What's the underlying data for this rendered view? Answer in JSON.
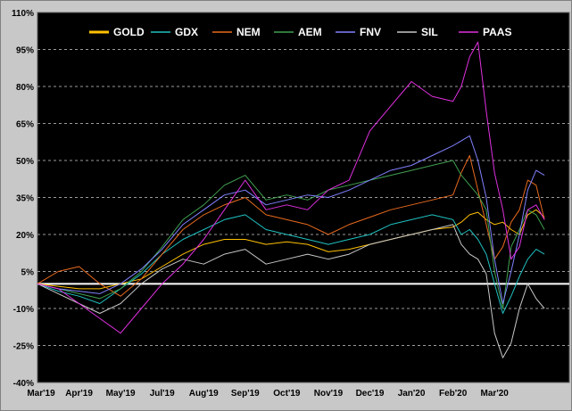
{
  "chart_data": {
    "type": "line",
    "title": "",
    "xlabel": "",
    "ylabel": "",
    "background": "#000000",
    "grid": true,
    "legend_placement": "top",
    "ylim": [
      -40,
      110
    ],
    "yticks": [
      -40,
      -25,
      -10,
      5,
      20,
      35,
      50,
      65,
      80,
      95,
      110
    ],
    "ytick_labels": [
      "-40%",
      "-25%",
      "-10%",
      "5%",
      "20%",
      "35%",
      "50%",
      "65%",
      "80%",
      "95%",
      "110%"
    ],
    "xlim": [
      0,
      12.8
    ],
    "x_tick_labels": [
      {
        "label": "Mar'19",
        "x": 0
      },
      {
        "label": "Apr'19",
        "x": 1
      },
      {
        "label": "May'19",
        "x": 2
      },
      {
        "label": "Jul'19",
        "x": 3
      },
      {
        "label": "Aug'19",
        "x": 4
      },
      {
        "label": "Sep'19",
        "x": 5
      },
      {
        "label": "Oct'19",
        "x": 6
      },
      {
        "label": "Nov'19",
        "x": 7
      },
      {
        "label": "Dec'19",
        "x": 8
      },
      {
        "label": "Jan'20",
        "x": 9
      },
      {
        "label": "Feb'20",
        "x": 10
      },
      {
        "label": "Mar'20",
        "x": 11
      }
    ],
    "reference_line": {
      "y": 0,
      "color": "#ffffff"
    },
    "x": [
      0,
      0.5,
      1,
      1.5,
      2,
      2.5,
      3,
      3.5,
      4,
      4.5,
      5,
      5.5,
      6,
      6.5,
      7,
      7.5,
      8,
      8.5,
      9,
      9.5,
      10,
      10.2,
      10.4,
      10.6,
      10.8,
      11,
      11.2,
      11.4,
      11.6,
      11.8,
      12,
      12.2
    ],
    "series": [
      {
        "name": "GOLD",
        "color": "#ffc000",
        "width": 2,
        "values": [
          0,
          -1,
          -2,
          -2,
          0,
          2,
          7,
          12,
          16,
          18,
          18,
          16,
          17,
          16,
          13,
          14,
          16,
          18,
          20,
          22,
          23,
          25,
          28,
          29,
          26,
          24,
          25,
          22,
          20,
          28,
          30,
          27
        ]
      },
      {
        "name": "GDX",
        "color": "#20c0c0",
        "width": 1,
        "values": [
          0,
          -3,
          -5,
          -8,
          -2,
          4,
          12,
          18,
          22,
          26,
          28,
          22,
          20,
          18,
          16,
          18,
          20,
          24,
          26,
          28,
          26,
          20,
          22,
          18,
          12,
          0,
          -12,
          -5,
          3,
          10,
          14,
          12
        ]
      },
      {
        "name": "NEM",
        "color": "#e86a1e",
        "width": 1,
        "values": [
          0,
          5,
          7,
          0,
          -5,
          2,
          12,
          22,
          28,
          32,
          35,
          28,
          26,
          24,
          20,
          24,
          27,
          30,
          32,
          34,
          36,
          45,
          52,
          38,
          24,
          10,
          15,
          25,
          30,
          42,
          40,
          26
        ]
      },
      {
        "name": "AEM",
        "color": "#40a050",
        "width": 1,
        "values": [
          0,
          -2,
          -4,
          -6,
          -2,
          5,
          15,
          26,
          32,
          40,
          44,
          34,
          36,
          34,
          38,
          40,
          42,
          44,
          46,
          48,
          50,
          44,
          40,
          36,
          30,
          5,
          -10,
          15,
          22,
          30,
          28,
          22
        ]
      },
      {
        "name": "FNV",
        "color": "#8080ff",
        "width": 1,
        "values": [
          0,
          -2,
          -3,
          -4,
          0,
          6,
          14,
          24,
          30,
          36,
          38,
          32,
          34,
          36,
          35,
          38,
          42,
          46,
          48,
          52,
          56,
          58,
          60,
          50,
          35,
          10,
          -8,
          5,
          20,
          38,
          46,
          44
        ]
      },
      {
        "name": "SIL",
        "color": "#c8c8c8",
        "width": 1,
        "values": [
          0,
          -4,
          -8,
          -12,
          -8,
          0,
          6,
          10,
          8,
          12,
          14,
          8,
          10,
          12,
          10,
          12,
          16,
          18,
          20,
          22,
          24,
          16,
          12,
          10,
          4,
          -20,
          -30,
          -24,
          -10,
          0,
          -6,
          -10
        ]
      },
      {
        "name": "PAAS",
        "color": "#e030e0",
        "width": 1,
        "values": [
          0,
          -2,
          -8,
          -14,
          -20,
          -10,
          0,
          8,
          18,
          30,
          42,
          30,
          32,
          30,
          38,
          42,
          62,
          72,
          82,
          76,
          74,
          80,
          92,
          98,
          70,
          45,
          30,
          10,
          15,
          30,
          32,
          26
        ]
      }
    ]
  }
}
